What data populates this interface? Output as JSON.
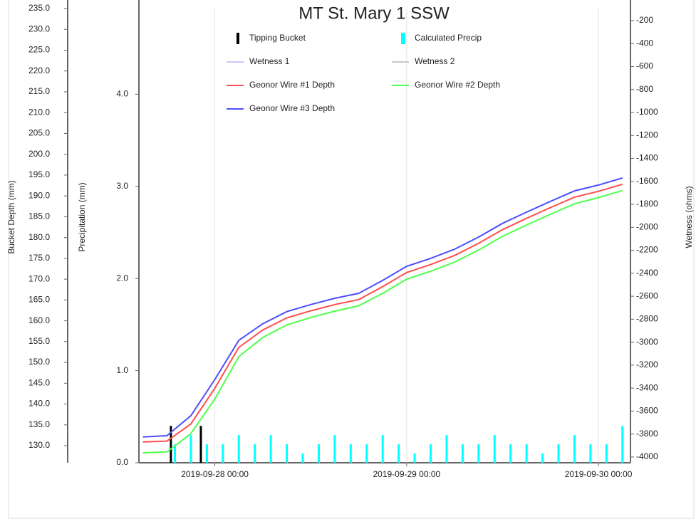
{
  "chart_data": {
    "type": "line",
    "title": "MT St. Mary 1 SSW",
    "ylabel": "Bucket Depth (mm)",
    "y2label": "Precipitation (mm)",
    "y3label": "Wetness (ohms)",
    "xlim": [
      "2019-09-27 14:30",
      "2019-09-30 04:00"
    ],
    "xticks": [
      "2019-09-28 00:00",
      "2019-09-29 00:00",
      "2019-09-30 00:00"
    ],
    "xgrid": true,
    "ylim": [
      125.9,
      235
    ],
    "yticks": [
      {
        "value": 130,
        "label": "130.0"
      },
      {
        "value": 135,
        "label": "135.0"
      },
      {
        "value": 140,
        "label": "140.0"
      },
      {
        "value": 145,
        "label": "145.0"
      },
      {
        "value": 150,
        "label": "150.0"
      },
      {
        "value": 155,
        "label": "155.0"
      },
      {
        "value": 160,
        "label": "160.0"
      },
      {
        "value": 165,
        "label": "165.0"
      },
      {
        "value": 170,
        "label": "170.0"
      },
      {
        "value": 175,
        "label": "175.0"
      },
      {
        "value": 180,
        "label": "180.0"
      },
      {
        "value": 185,
        "label": "185.0"
      },
      {
        "value": 190,
        "label": "190.0"
      },
      {
        "value": 195,
        "label": "195.0"
      },
      {
        "value": 200,
        "label": "200.0"
      },
      {
        "value": 205,
        "label": "205.0"
      },
      {
        "value": 210,
        "label": "210.0"
      },
      {
        "value": 215,
        "label": "215.0"
      },
      {
        "value": 220,
        "label": "220.0"
      },
      {
        "value": 225,
        "label": "225.0"
      },
      {
        "value": 230,
        "label": "230.0"
      },
      {
        "value": 235,
        "label": "235.0"
      }
    ],
    "y2lim": [
      0,
      4.93
    ],
    "y2ticks": [
      {
        "value": 0,
        "label": "0.0"
      },
      {
        "value": 1,
        "label": "1.0"
      },
      {
        "value": 2,
        "label": "2.0"
      },
      {
        "value": 3,
        "label": "3.0"
      },
      {
        "value": 4,
        "label": "4.0"
      }
    ],
    "y3lim": [
      -4050,
      -95
    ],
    "y3ticks": [
      -4000,
      -3800,
      -3600,
      -3400,
      -3200,
      -3000,
      -2800,
      -2600,
      -2400,
      -2200,
      -2000,
      -1800,
      -1600,
      -1400,
      -1200,
      -1000,
      -800,
      -600,
      -400,
      -200
    ],
    "series": [
      {
        "name": "Tipping Bucket",
        "kind": "bar",
        "axis": "y2",
        "color": "#000000",
        "x": [
          "2019-09-27 18:30",
          "2019-09-27 22:15"
        ],
        "values": [
          0.4,
          0.4
        ]
      },
      {
        "name": "Calculated Precip",
        "kind": "bar",
        "axis": "y2",
        "color": "#00ffff",
        "x": [
          "2019-09-27 19:00",
          "2019-09-27 21:00",
          "2019-09-27 23:00",
          "2019-09-28 01:00",
          "2019-09-28 03:00",
          "2019-09-28 05:00",
          "2019-09-28 07:00",
          "2019-09-28 09:00",
          "2019-09-28 11:00",
          "2019-09-28 13:00",
          "2019-09-28 15:00",
          "2019-09-28 17:00",
          "2019-09-28 19:00",
          "2019-09-28 21:00",
          "2019-09-28 23:00",
          "2019-09-29 01:00",
          "2019-09-29 03:00",
          "2019-09-29 05:00",
          "2019-09-29 07:00",
          "2019-09-29 09:00",
          "2019-09-29 11:00",
          "2019-09-29 13:00",
          "2019-09-29 15:00",
          "2019-09-29 17:00",
          "2019-09-29 19:00",
          "2019-09-29 21:00",
          "2019-09-29 23:00",
          "2019-09-30 01:00",
          "2019-09-30 03:00"
        ],
        "values": [
          0.2,
          0.3,
          0.2,
          0.2,
          0.3,
          0.2,
          0.3,
          0.2,
          0.1,
          0.2,
          0.3,
          0.2,
          0.2,
          0.3,
          0.2,
          0.1,
          0.2,
          0.3,
          0.2,
          0.2,
          0.3,
          0.2,
          0.2,
          0.1,
          0.2,
          0.3,
          0.2,
          0.2,
          0.4
        ]
      },
      {
        "name": "Wetness 1",
        "kind": "line",
        "axis": "y3",
        "color": "#c8c8ff"
      },
      {
        "name": "Wetness 2",
        "kind": "line",
        "axis": "y3",
        "color": "#c8c8c8"
      },
      {
        "name": "Geonor Wire #1 Depth",
        "kind": "line",
        "axis": "y",
        "color": "#ff4d4d",
        "x": [
          "2019-09-27 15:00",
          "2019-09-27 18:00",
          "2019-09-27 21:00",
          "2019-09-28 00:00",
          "2019-09-28 03:00",
          "2019-09-28 06:00",
          "2019-09-28 09:00",
          "2019-09-28 12:00",
          "2019-09-28 15:00",
          "2019-09-28 18:00",
          "2019-09-28 21:00",
          "2019-09-29 00:00",
          "2019-09-29 03:00",
          "2019-09-29 06:00",
          "2019-09-29 09:00",
          "2019-09-29 12:00",
          "2019-09-29 15:00",
          "2019-09-29 18:00",
          "2019-09-29 21:00",
          "2019-09-30 00:00",
          "2019-09-30 03:00"
        ],
        "values": [
          130.9,
          131.1,
          135.2,
          143.8,
          153.6,
          157.8,
          160.7,
          162.4,
          163.9,
          165.1,
          168.2,
          171.6,
          173.5,
          175.7,
          178.6,
          181.9,
          184.6,
          187.2,
          189.7,
          191.1,
          192.8
        ]
      },
      {
        "name": "Geonor Wire #2 Depth",
        "kind": "line",
        "axis": "y",
        "color": "#4dff4d",
        "x": [
          "2019-09-27 15:00",
          "2019-09-27 18:00",
          "2019-09-27 21:00",
          "2019-09-28 00:00",
          "2019-09-28 03:00",
          "2019-09-28 06:00",
          "2019-09-28 09:00",
          "2019-09-28 12:00",
          "2019-09-28 15:00",
          "2019-09-28 18:00",
          "2019-09-28 21:00",
          "2019-09-29 00:00",
          "2019-09-29 03:00",
          "2019-09-29 06:00",
          "2019-09-29 09:00",
          "2019-09-29 12:00",
          "2019-09-29 15:00",
          "2019-09-29 18:00",
          "2019-09-29 21:00",
          "2019-09-30 00:00",
          "2019-09-30 03:00"
        ],
        "values": [
          128.3,
          128.5,
          132.9,
          141.2,
          151.4,
          156.0,
          159.0,
          160.8,
          162.3,
          163.6,
          166.6,
          170.0,
          171.9,
          174.1,
          177.0,
          180.3,
          183.0,
          185.6,
          188.1,
          189.6,
          191.3
        ]
      },
      {
        "name": "Geonor Wire #3 Depth",
        "kind": "line",
        "axis": "y",
        "color": "#4d4dff",
        "x": [
          "2019-09-27 15:00",
          "2019-09-27 18:00",
          "2019-09-27 21:00",
          "2019-09-28 00:00",
          "2019-09-28 03:00",
          "2019-09-28 06:00",
          "2019-09-28 09:00",
          "2019-09-28 12:00",
          "2019-09-28 15:00",
          "2019-09-28 18:00",
          "2019-09-28 21:00",
          "2019-09-29 00:00",
          "2019-09-29 03:00",
          "2019-09-29 06:00",
          "2019-09-29 09:00",
          "2019-09-29 12:00",
          "2019-09-29 15:00",
          "2019-09-29 18:00",
          "2019-09-29 21:00",
          "2019-09-30 00:00",
          "2019-09-30 03:00"
        ],
        "values": [
          132.1,
          132.4,
          137.2,
          145.9,
          155.3,
          159.3,
          162.2,
          163.9,
          165.4,
          166.6,
          169.7,
          173.1,
          175.0,
          177.2,
          180.1,
          183.4,
          186.1,
          188.7,
          191.2,
          192.6,
          194.3
        ]
      }
    ]
  }
}
